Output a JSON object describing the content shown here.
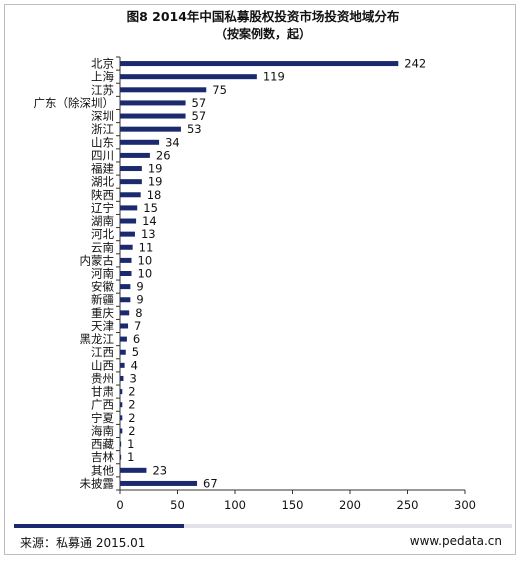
{
  "chart_data": {
    "type": "bar",
    "orientation": "horizontal",
    "title": "图8 2014年中国私募股权投资市场投资地域分布",
    "subtitle": "（按案例数，起）",
    "categories": [
      "北京",
      "上海",
      "江苏",
      "广东（除深圳）",
      "深圳",
      "浙江",
      "山东",
      "四川",
      "福建",
      "湖北",
      "陕西",
      "辽宁",
      "湖南",
      "河北",
      "云南",
      "内蒙古",
      "河南",
      "安徽",
      "新疆",
      "重庆",
      "天津",
      "黑龙江",
      "江西",
      "山西",
      "贵州",
      "甘肃",
      "广西",
      "宁夏",
      "海南",
      "西藏",
      "吉林",
      "其他",
      "未披露"
    ],
    "values": [
      242,
      119,
      75,
      57,
      57,
      53,
      34,
      26,
      19,
      19,
      18,
      15,
      14,
      13,
      11,
      10,
      10,
      9,
      9,
      8,
      7,
      6,
      5,
      4,
      3,
      2,
      2,
      2,
      2,
      1,
      1,
      23,
      67
    ],
    "xlim": [
      0,
      300
    ],
    "xticks": [
      0,
      50,
      100,
      150,
      200,
      250,
      300
    ],
    "bar_color": "#1b2a6e",
    "grid": false,
    "legend": "none"
  },
  "footer": {
    "source": "来源：私募通  2015.01",
    "site": "www.pedata.cn"
  }
}
